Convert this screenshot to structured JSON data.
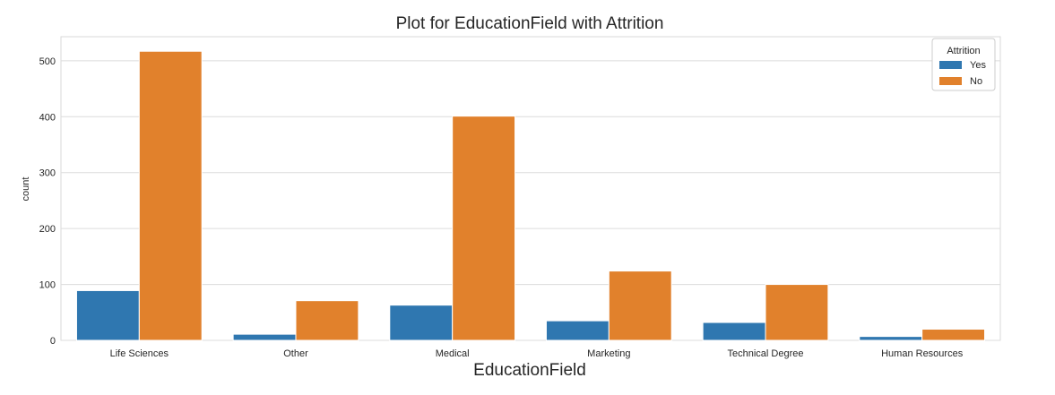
{
  "chart_data": {
    "type": "bar",
    "title": "Plot for EducationField with Attrition",
    "xlabel": "EducationField",
    "ylabel": "count",
    "categories": [
      "Life Sciences",
      "Other",
      "Medical",
      "Marketing",
      "Technical Degree",
      "Human Resources"
    ],
    "series": [
      {
        "name": "Yes",
        "color": "#2f77b0",
        "values": [
          89,
          11,
          63,
          35,
          32,
          7
        ]
      },
      {
        "name": "No",
        "color": "#e1812c",
        "values": [
          517,
          71,
          401,
          124,
          100,
          20
        ]
      }
    ],
    "ylim": [
      0,
      543
    ],
    "yticks": [
      0,
      100,
      200,
      300,
      400,
      500
    ],
    "grid": true,
    "legend": {
      "title": "Attrition",
      "position": "top-right"
    }
  }
}
